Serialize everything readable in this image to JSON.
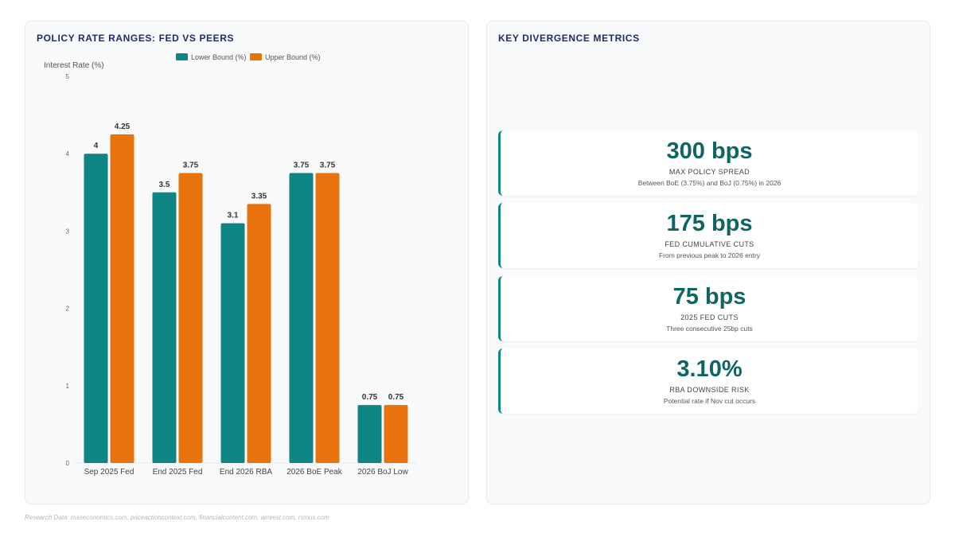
{
  "left_panel": {
    "title": "POLICY RATE RANGES: FED VS PEERS"
  },
  "right_panel": {
    "title": "KEY DIVERGENCE METRICS",
    "metrics": [
      {
        "value": "300 bps",
        "label": "MAX POLICY SPREAD",
        "desc": "Between BoE (3.75%) and BoJ (0.75%) in 2026"
      },
      {
        "value": "175 bps",
        "label": "FED CUMULATIVE CUTS",
        "desc": "From previous peak to 2026 entry"
      },
      {
        "value": "75 bps",
        "label": "2025 FED CUTS",
        "desc": "Three consecutive 25bp cuts"
      },
      {
        "value": "3.10%",
        "label": "RBA DOWNSIDE RISK",
        "desc": "Potential rate if Nov cut occurs"
      }
    ]
  },
  "source": "Research Data: maseconomics.com, priceactioncontext.com, financialcontent.com, ainvest.com, rsmus.com",
  "colors": {
    "lower": "#0f8585",
    "upper": "#e8720c",
    "accent": "#0f6464"
  },
  "chart_data": {
    "type": "bar",
    "title": "POLICY RATE RANGES: FED VS PEERS",
    "ylabel": "Interest Rate (%)",
    "xlabel": "",
    "categories": [
      "Sep 2025 Fed",
      "End 2025 Fed",
      "End 2026 RBA",
      "2026 BoE Peak",
      "2026 BoJ Low"
    ],
    "series": [
      {
        "name": "Lower Bound (%)",
        "values": [
          4,
          3.5,
          3.1,
          3.75,
          0.75
        ],
        "labels": [
          "4",
          "3.5",
          "3.1",
          "3.75",
          "0.75"
        ]
      },
      {
        "name": "Upper Bound (%)",
        "values": [
          4.25,
          3.75,
          3.35,
          3.75,
          0.75
        ],
        "labels": [
          "4.25",
          "3.75",
          "3.35",
          "3.75",
          "0.75"
        ]
      }
    ],
    "ylim": [
      0,
      5
    ],
    "yticks": [
      "0",
      "1",
      "2",
      "3",
      "4",
      "5"
    ],
    "legend": "top",
    "grid": false
  }
}
